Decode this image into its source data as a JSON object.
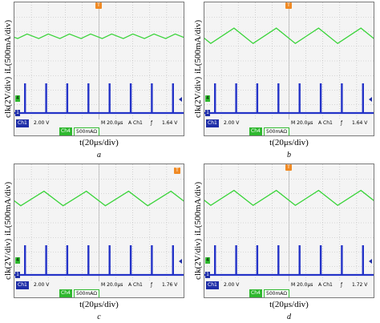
{
  "chart_data": [
    {
      "type": "line",
      "caption": "a",
      "ylabel_current": "iL(500mA/div)",
      "ylabel_clk": "clk(2V/div)",
      "xlabel": "t(20μs/div)",
      "ch1_scale": "2.00 V",
      "ch4_scale": "500mAΩ",
      "timebase": "M 20.0μs",
      "trigger_source": "A  Ch1",
      "trigger_level": "1.64 V",
      "current_waveform": {
        "cycles": 8,
        "peak_div": 0.33,
        "valley_div": 0.9,
        "rise_fraction": 0.45
      },
      "clock_pulses": {
        "count": 8,
        "high_div": 2.9,
        "low_div": 0.0
      }
    },
    {
      "type": "line",
      "caption": "b",
      "ylabel_current": "iL(500mA/div)",
      "ylabel_clk": "clk(2V/div)",
      "xlabel": "t(20μs/div)",
      "ch1_scale": "2.00 V",
      "ch4_scale": "500mAΩ",
      "timebase": "M 20.0μs",
      "trigger_source": "A  Ch1",
      "trigger_level": "1.64 V",
      "current_waveform": {
        "cycles": 4,
        "peak_div": -0.4,
        "valley_div": 1.5,
        "rise_fraction": 0.55
      },
      "clock_pulses": {
        "count": 8,
        "high_div": 2.9,
        "low_div": 0.0
      }
    },
    {
      "type": "line",
      "caption": "c",
      "ylabel_current": "iL(500mA/div)",
      "ylabel_clk": "clk(2V/div)",
      "xlabel": "t(20μs/div)",
      "ch1_scale": "2.00 V",
      "ch4_scale": "500mAΩ",
      "timebase": "M 20.0μs",
      "trigger_source": "A  Ch1",
      "trigger_level": "1.76 V",
      "current_waveform": {
        "cycles": 4,
        "peak_div": -0.25,
        "valley_div": 1.55,
        "rise_fraction": 0.55
      },
      "clock_pulses": {
        "count": 8,
        "high_div": 2.9,
        "low_div": 0.0
      }
    },
    {
      "type": "line",
      "caption": "d",
      "ylabel_current": "iL(500mA/div)",
      "ylabel_clk": "clk(2V/div)",
      "xlabel": "t(20μs/div)",
      "ch1_scale": "2.00 V",
      "ch4_scale": "500mAΩ",
      "timebase": "M 20.0μs",
      "trigger_source": "A  Ch1",
      "trigger_level": "1.72 V",
      "current_waveform": {
        "cycles": 4,
        "peak_div": -0.35,
        "valley_div": 1.5,
        "rise_fraction": 0.55
      },
      "clock_pulses": {
        "count": 8,
        "high_div": 2.9,
        "low_div": 0.0
      }
    }
  ],
  "colors": {
    "current_trace": "#3ad43a",
    "clock_trace": "#2433c8",
    "trigger_marker": "#f08a24",
    "grid": "#b8b8b8"
  }
}
